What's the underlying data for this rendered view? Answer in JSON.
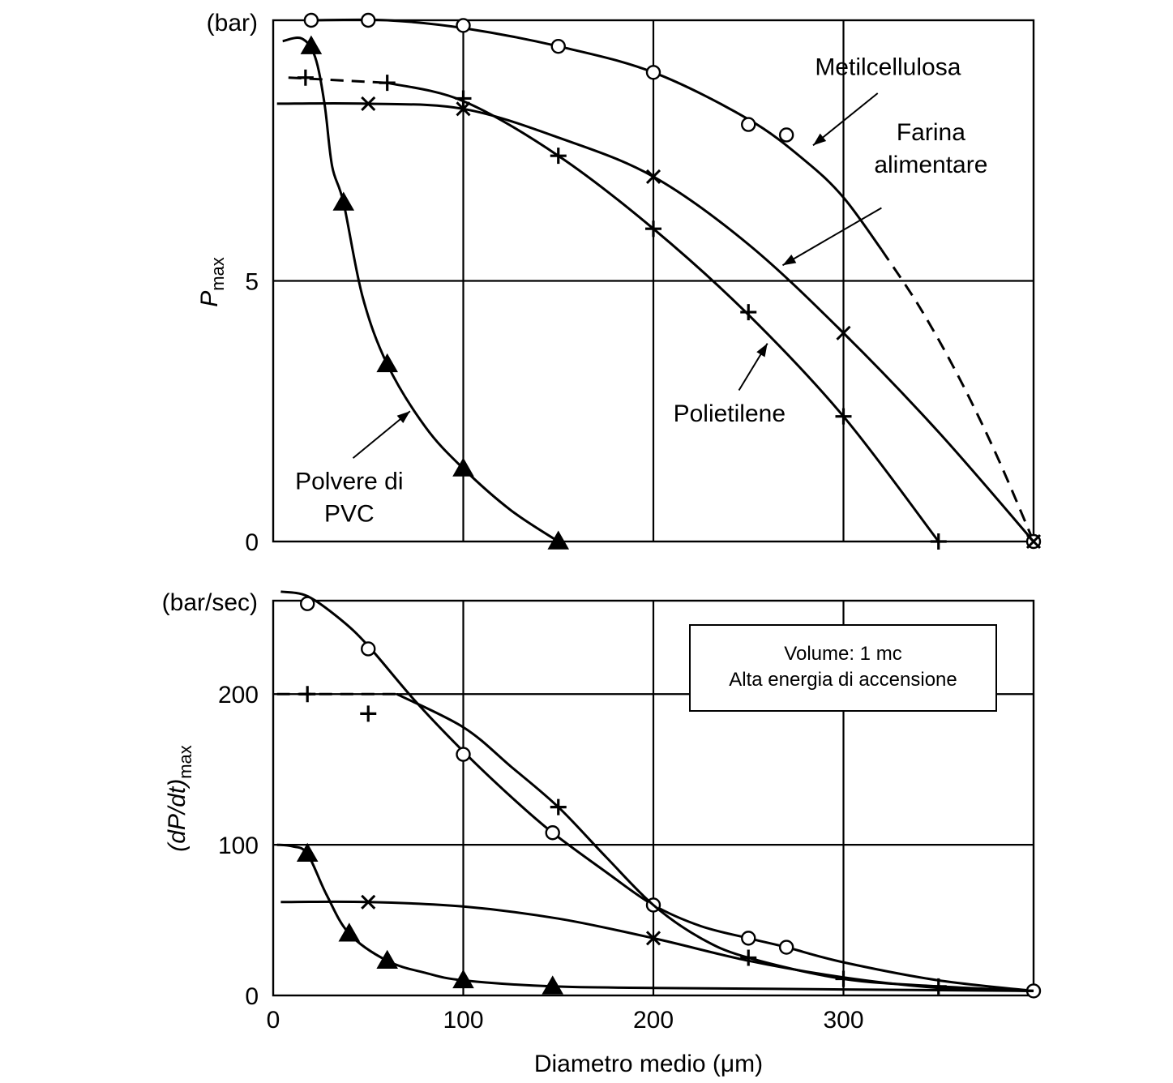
{
  "chart_data": [
    {
      "type": "line",
      "unit_label": "(bar)",
      "ylabel": "P",
      "ylabel_sub": "max",
      "xlim": [
        0,
        400
      ],
      "ylim": [
        0,
        10
      ],
      "xticks": [
        100,
        200,
        300
      ],
      "yticks": [
        {
          "value": 0,
          "label": "0"
        },
        {
          "value": 5,
          "label": "5"
        }
      ],
      "grid": true,
      "series": [
        {
          "name": "Metilcellulosa",
          "marker": "circle",
          "points": [
            [
              20,
              10.0
            ],
            [
              50,
              10.0
            ],
            [
              100,
              9.9
            ],
            [
              150,
              9.5
            ],
            [
              200,
              9.0
            ],
            [
              250,
              8.0
            ],
            [
              270,
              7.8
            ],
            [
              400,
              0.0
            ]
          ],
          "curve": [
            [
              20,
              10.0
            ],
            [
              60,
              10.0
            ],
            [
              100,
              9.85
            ],
            [
              150,
              9.5
            ],
            [
              200,
              9.0
            ],
            [
              250,
              8.1
            ],
            [
              280,
              7.3
            ],
            [
              300,
              6.6
            ],
            [
              320,
              5.6
            ]
          ],
          "dashed_curve": [
            [
              320,
              5.6
            ],
            [
              340,
              4.5
            ],
            [
              360,
              3.2
            ],
            [
              380,
              1.7
            ],
            [
              400,
              0.0
            ]
          ]
        },
        {
          "name": "Farina alimentare",
          "marker": "x",
          "points": [
            [
              50,
              8.4
            ],
            [
              100,
              8.3
            ],
            [
              200,
              7.0
            ],
            [
              300,
              4.0
            ],
            [
              400,
              0.0
            ]
          ],
          "curve": [
            [
              2,
              8.4
            ],
            [
              50,
              8.4
            ],
            [
              100,
              8.3
            ],
            [
              150,
              7.75
            ],
            [
              200,
              7.0
            ],
            [
              250,
              5.7
            ],
            [
              300,
              4.0
            ],
            [
              350,
              2.1
            ],
            [
              400,
              0.0
            ]
          ]
        },
        {
          "name": "Polietilene",
          "marker": "plus",
          "points": [
            [
              17,
              8.9
            ],
            [
              60,
              8.8
            ],
            [
              100,
              8.5
            ],
            [
              150,
              7.4
            ],
            [
              200,
              6.0
            ],
            [
              250,
              4.4
            ],
            [
              300,
              2.4
            ],
            [
              350,
              0.0
            ]
          ],
          "curve": [
            [
              60,
              8.8
            ],
            [
              100,
              8.45
            ],
            [
              150,
              7.4
            ],
            [
              200,
              6.0
            ],
            [
              250,
              4.35
            ],
            [
              300,
              2.4
            ],
            [
              350,
              0.0
            ]
          ],
          "dashed_curve": [
            [
              8,
              8.9
            ],
            [
              60,
              8.8
            ]
          ]
        },
        {
          "name": "Polvere di PVC",
          "marker": "triangle",
          "points": [
            [
              20,
              9.5
            ],
            [
              37,
              6.5
            ],
            [
              60,
              3.4
            ],
            [
              100,
              1.4
            ],
            [
              150,
              0.0
            ]
          ],
          "curve": [
            [
              5,
              9.6
            ],
            [
              15,
              9.65
            ],
            [
              22,
              9.3
            ],
            [
              27,
              8.4
            ],
            [
              31,
              7.2
            ],
            [
              37,
              6.5
            ],
            [
              47,
              4.7
            ],
            [
              60,
              3.4
            ],
            [
              80,
              2.2
            ],
            [
              100,
              1.4
            ],
            [
              125,
              0.6
            ],
            [
              150,
              0.0
            ]
          ]
        }
      ],
      "annotations": [
        {
          "lines": [
            "Metilcellulosa"
          ],
          "x": 285,
          "y": 8.95,
          "anchor": "start",
          "arrow_from": [
            318,
            8.6
          ],
          "arrow_to": [
            284,
            7.6
          ]
        },
        {
          "lines": [
            "Farina",
            "alimentare"
          ],
          "x": 346,
          "y": 7.7,
          "anchor": "middle",
          "arrow_from": [
            320,
            6.4
          ],
          "arrow_to": [
            268,
            5.3
          ]
        },
        {
          "lines": [
            "Polietilene"
          ],
          "x": 240,
          "y": 2.3,
          "anchor": "middle",
          "arrow_from": [
            245,
            2.9
          ],
          "arrow_to": [
            260,
            3.8
          ]
        },
        {
          "lines": [
            "Polvere di",
            "PVC"
          ],
          "x": 40,
          "y": 1.0,
          "anchor": "middle",
          "arrow_from": [
            42,
            1.6
          ],
          "arrow_to": [
            72,
            2.5
          ]
        }
      ]
    },
    {
      "type": "line",
      "unit_label": "(bar/sec)",
      "ylabel": "(dP/dt)",
      "ylabel_sub": "max",
      "xlabel": "Diametro medio (μm)",
      "xlim": [
        0,
        400
      ],
      "ylim": [
        0,
        262
      ],
      "xticks": [
        0,
        100,
        200,
        300
      ],
      "yticks": [
        {
          "value": 0,
          "label": "0"
        },
        {
          "value": 100,
          "label": "100"
        },
        {
          "value": 200,
          "label": "200"
        }
      ],
      "grid": true,
      "note": {
        "lines": [
          "Volume: 1 mc",
          "Alta energia di accensione"
        ]
      },
      "series": [
        {
          "name": "Metilcellulosa",
          "marker": "circle",
          "points": [
            [
              18,
              260
            ],
            [
              50,
              230
            ],
            [
              100,
              160
            ],
            [
              147,
              108
            ],
            [
              200,
              60
            ],
            [
              250,
              38
            ],
            [
              270,
              32
            ],
            [
              400,
              3
            ]
          ],
          "curve": [
            [
              4,
              268
            ],
            [
              18,
              265
            ],
            [
              35,
              250
            ],
            [
              50,
              232
            ],
            [
              75,
              195
            ],
            [
              100,
              162
            ],
            [
              125,
              132
            ],
            [
              147,
              108
            ],
            [
              175,
              82
            ],
            [
              200,
              60
            ],
            [
              225,
              46
            ],
            [
              250,
              38
            ],
            [
              270,
              32
            ],
            [
              300,
              22
            ],
            [
              350,
              10
            ],
            [
              400,
              3
            ]
          ]
        },
        {
          "name": "Polietilene",
          "marker": "plus",
          "points": [
            [
              18,
              200
            ],
            [
              50,
              187
            ],
            [
              150,
              125
            ],
            [
              250,
              25
            ],
            [
              300,
              11
            ],
            [
              350,
              6
            ]
          ],
          "curve": [
            [
              65,
              200
            ],
            [
              100,
              178
            ],
            [
              125,
              152
            ],
            [
              150,
              125
            ],
            [
              175,
              92
            ],
            [
              200,
              60
            ],
            [
              225,
              38
            ],
            [
              250,
              25
            ],
            [
              300,
              11
            ],
            [
              350,
              6
            ],
            [
              400,
              3
            ]
          ],
          "dashed_curve": [
            [
              2,
              200
            ],
            [
              65,
              200
            ]
          ]
        },
        {
          "name": "Farina alimentare",
          "marker": "x",
          "points": [
            [
              50,
              62
            ],
            [
              200,
              38
            ]
          ],
          "curve": [
            [
              4,
              62
            ],
            [
              50,
              62
            ],
            [
              100,
              59
            ],
            [
              150,
              51
            ],
            [
              200,
              38
            ],
            [
              250,
              23
            ],
            [
              300,
              12
            ],
            [
              350,
              5
            ],
            [
              400,
              3
            ]
          ]
        },
        {
          "name": "Polvere di PVC",
          "marker": "triangle",
          "points": [
            [
              18,
              94
            ],
            [
              40,
              41
            ],
            [
              60,
              23
            ],
            [
              100,
              10
            ],
            [
              147,
              6
            ]
          ],
          "curve": [
            [
              2,
              100
            ],
            [
              10,
              99
            ],
            [
              18,
              94
            ],
            [
              28,
              67
            ],
            [
              40,
              41
            ],
            [
              60,
              23
            ],
            [
              80,
              15
            ],
            [
              100,
              10
            ],
            [
              147,
              6
            ],
            [
              200,
              5
            ],
            [
              300,
              4
            ],
            [
              400,
              3
            ]
          ]
        }
      ]
    }
  ]
}
